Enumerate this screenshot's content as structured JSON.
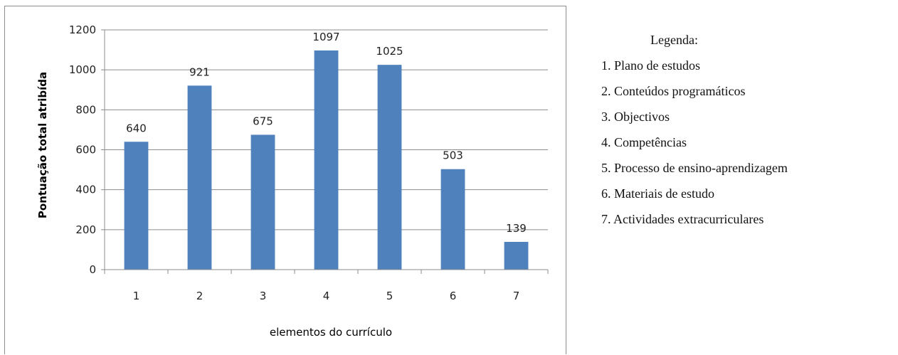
{
  "chart_data": {
    "type": "bar",
    "categories": [
      "1",
      "2",
      "3",
      "4",
      "5",
      "6",
      "7"
    ],
    "values": [
      640,
      921,
      675,
      1097,
      1025,
      503,
      139
    ],
    "data_labels": [
      "640",
      "921",
      "675",
      "1097",
      "1025",
      "503",
      "139"
    ],
    "title": "",
    "xlabel": "elementos do currículo",
    "ylabel": "Pontuação total atribída",
    "ylim": [
      0,
      1200
    ],
    "yticks": [
      0,
      200,
      400,
      600,
      800,
      1000,
      1200
    ],
    "ytick_labels": [
      "0",
      "200",
      "400",
      "600",
      "800",
      "1000",
      "1200"
    ],
    "grid": true,
    "bar_color": "#4f81bd",
    "legend_placement": "right"
  },
  "legend": {
    "title": "Legenda:",
    "items": [
      "1. Plano de estudos",
      "2. Conteúdos programáticos",
      "3. Objectivos",
      "4. Competências",
      "5. Processo de ensino-aprendizagem",
      "6. Materiais de estudo",
      "7. Actividades extracurriculares"
    ]
  }
}
